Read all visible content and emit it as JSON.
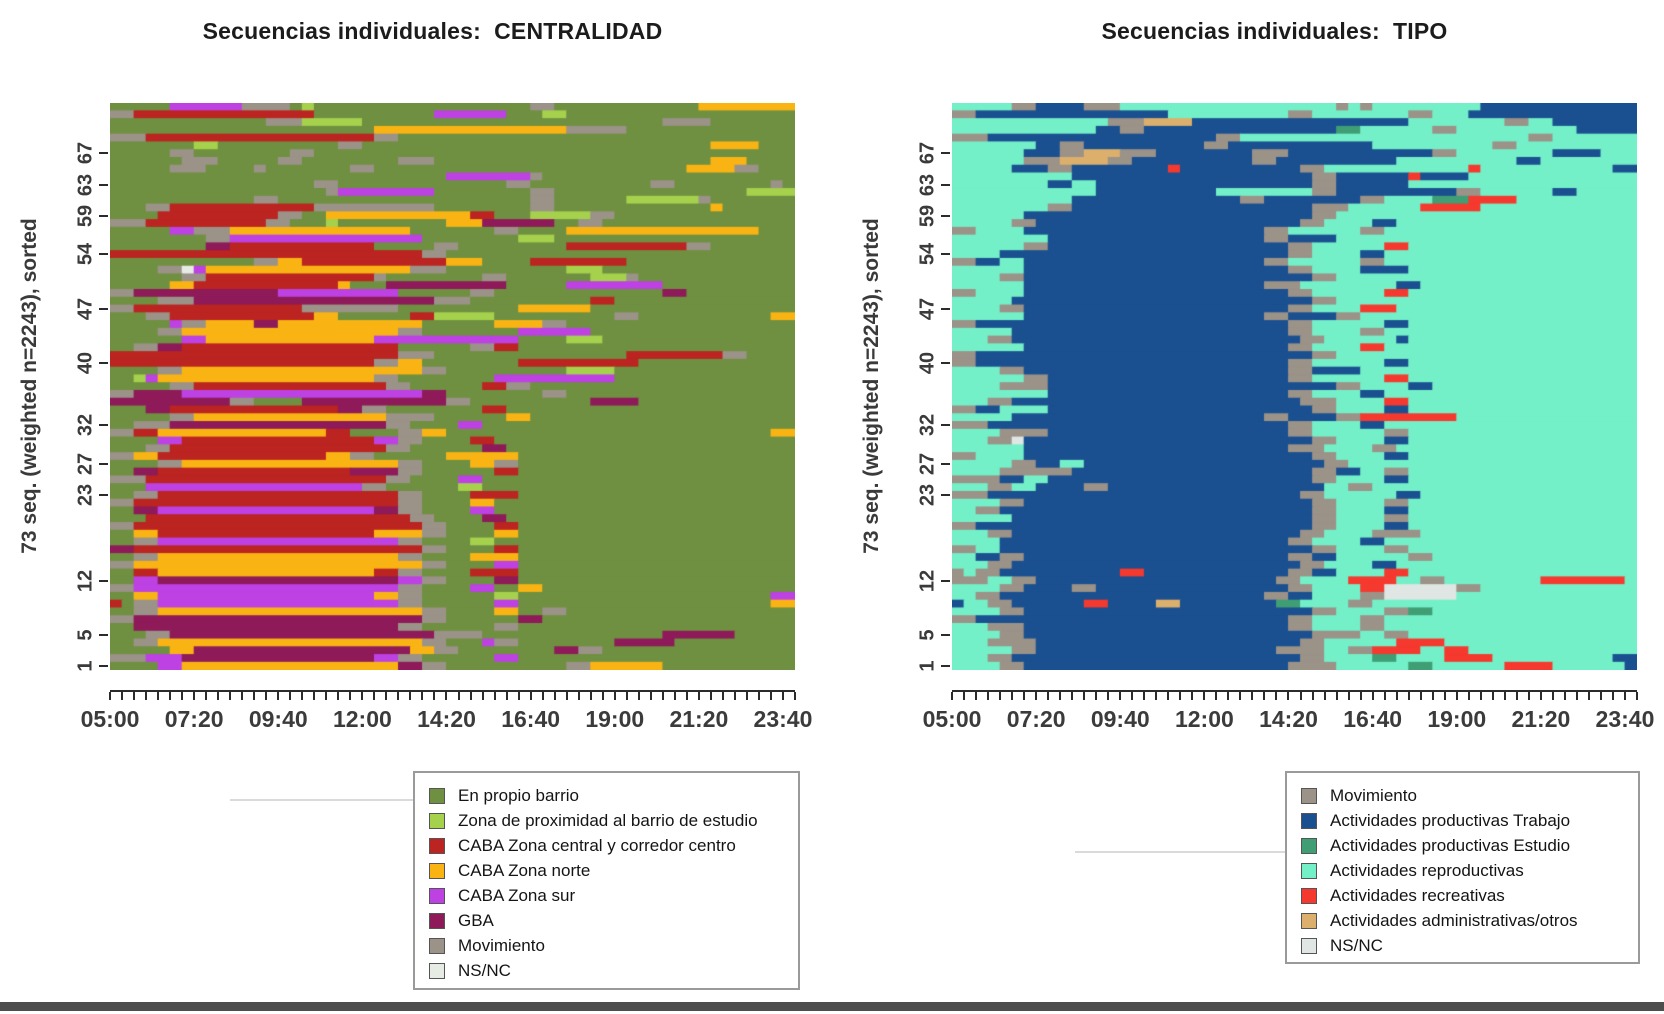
{
  "figure": {
    "background": "#ffffff",
    "bottom_bar_color": "#4d4d4d"
  },
  "chart_data": [
    {
      "type": "heatmap",
      "subtype": "sequence-index-plot",
      "title": "Secuencias individuales:  CENTRALIDAD",
      "ylabel": "73 seq. (weighted n=2243), sorted",
      "xlabel": "",
      "n_sequences": 73,
      "n_slots": 57,
      "slot_minutes": 20,
      "time_start": "05:00",
      "time_end": "24:00",
      "x_ticks": [
        "05:00",
        "07:20",
        "09:40",
        "12:00",
        "14:20",
        "16:40",
        "19:00",
        "21:20",
        "23:40"
      ],
      "y_ticks": [
        1,
        5,
        12,
        23,
        27,
        32,
        40,
        47,
        54,
        59,
        63,
        67
      ],
      "grid": false,
      "legend_position": "bottom",
      "states": {
        "G": {
          "label": "En propio barrio",
          "color": "#6f9040"
        },
        "P": {
          "label": "Zona de proximidad al barrio de estudio",
          "color": "#a5d14d"
        },
        "C": {
          "label": "CABA Zona central y corredor centro",
          "color": "#bb2420"
        },
        "N": {
          "label": "CABA Zona norte",
          "color": "#f9b414"
        },
        "S": {
          "label": "CABA Zona sur",
          "color": "#bd41e3"
        },
        "B": {
          "label": "GBA",
          "color": "#8e1a59"
        },
        "M": {
          "label": "Movimiento",
          "color": "#9b9288"
        },
        "X": {
          "label": "NS/NC",
          "color": "#e6ebe4"
        }
      },
      "legend": [
        {
          "label": "En propio barrio",
          "color": "#6f9040"
        },
        {
          "label": "Zona de proximidad al barrio de estudio",
          "color": "#a5d14d"
        },
        {
          "label": "CABA Zona central y corredor centro",
          "color": "#bb2420"
        },
        {
          "label": "CABA Zona norte",
          "color": "#f9b414"
        },
        {
          "label": "CABA Zona sur",
          "color": "#bd41e3"
        },
        {
          "label": "GBA",
          "color": "#8e1a59"
        },
        {
          "label": "Movimiento",
          "color": "#9b9288"
        },
        {
          "label": "NS/NC",
          "color": "#e6ebe4"
        }
      ],
      "row_order": "top_to_bottom",
      "rows": [
        "G5,S6,M4,G1,P1,G18,M2,G12,N8",
        "M2,C15,G10,S6,G3,P2,G19",
        "G13,M3,P5,G25,M4,G7",
        "G22,N16,M5,G14",
        "M3,C19,M2,G33",
        "G7,P2,G10,M2,G29,N4,G3",
        "G5,M2,G8,M2,G40",
        "G6,M3,G5,M2,G8,M3,G23,N3,G4",
        "G5,M3,G4,M1,G7,M2,G26,N4,M2,G3",
        "G28,S7,M1,G21",
        "G17,M2,G14,M2,G10,M2,G8,M1,G1",
        "G18,M1,S8,G8,M2,G16,P4",
        "G12,M2,G21,M2,G6,P6,M1,G7",
        "G3,M2,C12,M10,G8,M2,G13,N1,G6",
        "G4,C10,M2,G2,N12,C2,G3,P5,M2,G15",
        "M3,C10,M2,G3,P1,G9,N3,B6,G2,M2,G16",
        "G5,S2,M3,N15,G7,M2,G4,N16,G3",
        "G8,M2,S16,G8,P3,G20",
        "G8,B2,C12,G5,M2,G9,C10,M2,G7",
        "C26,M2,G29",
        "G12,M2,N2,C12,N3,G4,C8,G14",
        "G4,M2,X1,S1,N17,M3,G10,P3,G16",
        "G6,M2,C14,M1,G8,M2,G7,P3,M1,G13",
        "G5,N2,C12,N1,G3,B10,G5,S8,G11",
        "M2,B12,S10,G6,M2,G14,B2,G9",
        "G4,M3,B20,M3,G10,C2,G15",
        "M2,C14,M8,G10,N6,G17",
        "G3,M2,C12,N2,G6,C2,P5,G10,M2,G11,N2",
        "G5,S1,M2,N4,B2,N12,G6,N4,M2,G19",
        "G4,M2,N18,M2,G8,S6,G17",
        "G6,S2,N14,S12,G4,P3,G16",
        "G2,M2,B2,C18,G6,M2,C2,G23",
        "C24,M3,G16,C8,M2,G4",
        "C22,M2,N2,G8,C10,G13",
        "G4,M2,N20,M2,G10,P4,G15",
        "G2,P1,S1,N18,M2,G8,S10,G15",
        "G5,M2,C16,M2,G6,C2,M2,G22",
        "M2,B4,S20,B2,G8,M2,G19",
        "B10,M2,G4,B12,M2,G10,B4,G13",
        "G3,B2,C14,B2,M2,G8,C2,G24",
        "G5,M2,N16,M4,G6,N2,G22",
        "G2,M3,B18,M2,G4,S2,G26",
        "M2,C2,N14,C2,G4,M2,N2,G27,N2",
        "G4,S2,C16,S2,M2,G4,C2,G25",
        "G3,M2,C18,M2,G6,B2,G24",
        "M2,N2,C14,N2,M2,G6,N6,G23",
        "G4,M2,N18,M2,G4,N2,M2,G23",
        "G2,B2,C16,B4,M2,G6,C2,G23",
        "M3,C20,M2,G4,S2,G26",
        "G3,S18,M2,G6,P2,G26",
        "G2,M2,C20,M2,G4,C4,G23",
        "M2,C22,M2,G4,N2,G25",
        "G2,B2,S18,B2,M2,G4,S2,G25",
        "G3,C22,M2,G4,B2,G24",
        "M2,C24,M2,G4,C2,G23",
        "G2,N2,C18,N4,M2,G4,N2,G23",
        "G2,M2,S20,M2,G4,P2,G25",
        "B2,C24,M2,G4,C2,G23",
        "G2,M2,N20,M2,G4,N4,G23",
        "M2,N24,M2,G4,S2,G23",
        "G2,C2,N18,C2,M2,G4,C4,G23",
        "G2,S2,B20,S2,M2,G4,B2,G23",
        "M2,S22,M2,G4,S2,G2,N2,G21",
        "G2,N2,S18,N2,M2,G6,P2,G21,S2",
        "C1,G1,M2,S20,M2,G6,S2,G21,N2",
        "G2,M2,N22,M2,G4,N2,G2,M2,G19",
        "M2,B24,M2,G6,B2,G21",
        "G2,B22,M2,G6,M2,G23",
        "G3,M2,B22,M4,G15,B6,G5",
        "G2,M2,N22,M2,G3,S1,M2,G8,B5,G10",
        "G5,N2,B18,N2,M2,G8,B2,M2,G16",
        "M3,S3,B16,S2,M2,G6,S2,G23",
        "G4,S2,N18,B2,M2,G10,M2,N6,G11"
      ]
    },
    {
      "type": "heatmap",
      "subtype": "sequence-index-plot",
      "title": "Secuencias individuales:  TIPO",
      "ylabel": "73 seq. (weighted n=2243), sorted",
      "xlabel": "",
      "n_sequences": 73,
      "n_slots": 57,
      "slot_minutes": 20,
      "time_start": "05:00",
      "time_end": "24:00",
      "x_ticks": [
        "05:00",
        "07:20",
        "09:40",
        "12:00",
        "14:20",
        "16:40",
        "19:00",
        "21:20",
        "23:40"
      ],
      "y_ticks": [
        1,
        5,
        12,
        23,
        27,
        32,
        40,
        47,
        54,
        59,
        63,
        67
      ],
      "grid": false,
      "legend_position": "bottom",
      "states": {
        "M": {
          "label": "Movimiento",
          "color": "#9b9288"
        },
        "T": {
          "label": "Actividades productivas Trabajo",
          "color": "#1a5090"
        },
        "E": {
          "label": "Actividades productivas Estudio",
          "color": "#3f9e74"
        },
        "R": {
          "label": "Actividades reproductivas",
          "color": "#74f0c8"
        },
        "C": {
          "label": "Actividades recreativas",
          "color": "#f5392e"
        },
        "A": {
          "label": "Actividades administrativas/otros",
          "color": "#dcb06c"
        },
        "X": {
          "label": "NS/NC",
          "color": "#dfe6e3"
        }
      },
      "legend": [
        {
          "label": "Movimiento",
          "color": "#9b9288"
        },
        {
          "label": "Actividades productivas Trabajo",
          "color": "#1a5090"
        },
        {
          "label": "Actividades productivas Estudio",
          "color": "#3f9e74"
        },
        {
          "label": "Actividades reproductivas",
          "color": "#74f0c8"
        },
        {
          "label": "Actividades recreativas",
          "color": "#f5392e"
        },
        {
          "label": "Actividades administrativas/otros",
          "color": "#dcb06c"
        },
        {
          "label": "NS/NC",
          "color": "#dfe6e3"
        }
      ],
      "row_order": "top_to_bottom",
      "rows": [
        "R5,M2,T4,M3,R18,M1,R1,M1,R9,T13",
        "M2,T16,R10,M2,R8,M2,R3,T14",
        "R13,M3,A4,T18,R8,M2,R2,T7",
        "R12,T2,M2,T16,E2,R6,M2,R10,T5",
        "M3,T19,M2,R24,M2,R7",
        "R7,T2,M2,T10,M2,T12,R10,M2,R10",
        "R6,T3,M2,A3,M3,T8,M3,T12,M2,R8,T4,R3",
        "R6,M3,A4,M2,T10,M2,T10,R10,T2,R8",
        "R5,T3,M2,T8,C1,T10,M2,R12,C1,R11,T2",
        "R10,T20,M2,T6,C1,T4,R14",
        "R8,T2,R2,T18,M2,T6,R19",
        "R12,T10,R8,M2,T10,M2,R6,T2,R5",
        "R10,T14,M2,T8,M2,R4,E3,C4,R10",
        "R8,M2,T20,M3,R6,C5,R13",
        "R6,T24,M2,R25",
        "R5,M2,T22,M2,R4,T2,R20",
        "M2,R4,T20,M2,R6,M2,R21",
        "R8,T18,M2,T4,R25",
        "R6,M2,T20,M2,R6,C2,R19",
        "R4,T24,M2,R4,T2,R21",
        "M2,T2,R2,T20,M2,R6,M2,R21",
        "R6,T22,M2,R4,T4,R19",
        "R4,M2,T24,M2,R25",
        "R6,T20,M3,R8,T2,R18",
        "M2,R4,T22,M2,R6,C2,R19",
        "R5,T25,M2,R25",
        "R4,M2,T22,M2,R4,C3,R20",
        "R6,T20,M2,T4,M2,R23",
        "M2,T26,M2,R6,T2,R19",
        "R5,T23,M2,R4,M2,R21",
        "R3,M2,T24,M2,R6,T1,R19",
        "R6,T22,M2,R4,C2,R21",
        "M2,T28,M2,R25",
        "M2,T26,M2,R6,T2,R19",
        "R4,M2,T22,M2,T4,R23",
        "R6,M2,T20,M2,R6,C2,R19",
        "R4,M4,T24,M2,R4,T2,R17",
        "R8,T20,M2,R4,T2,R21",
        "R3,M2,T24,M3,R4,C2,R19",
        "M2,T2,R4,T22,M2,R4,T2,R19",
        "R5,T21,M2,T4,M2,C8,R15",
        "M3,T25,M2,R4,T2,R21",
        "R4,M4,T20,M2,R6,M2,R19",
        "R3,M2,X1,T24,M2,R4,T2,R19",
        "R6,T22,M3,R4,M2,R20",
        "M2,R4,T24,M2,R4,T2,R19",
        "R5,M2,T2,R2,T20,M2,R24",
        "R4,M6,T20,M2,T2,R2,M2,R19",
        "M4,T2,R2,T22,M2,R4,T2,R19",
        "R3,M2,R2,T4,M2,T18,R2,M2,R22",
        "M3,T26,M2,R6,T2,R18",
        "R4,M2,T24,M2,R4,M2,R19",
        "R2,M2,T26,M2,R4,T2,R19",
        "R5,T25,M2,R4,M2,R19",
        "M2,T28,M2,R4,T2,R19",
        "R3,M2,T24,M2,R4,M4,R18",
        "R4,T24,M2,R4,T2,R21",
        "M2,R2,T26,M2,R4,M2,R19",
        "R2,T2,M2,T22,M2,T2,R6,M2,R17",
        "R3,M2,T24,M2,R4,T2,R20",
        "M1,R1,M2,T10,C2,T12,M2,T2,R4,C2,R19",
        "M3,R2,M2,T20,M2,R4,C4,R2,M2,R8,C7,R1",
        "R4,M2,T4,M2,T16,M2,R4,C2,X6,M2,R13",
        "R2,M2,T22,M2,T2,R4,M2,X6,R15",
        "T1,R2,M2,T6,C2,T4,A2,T8,E2,R4,M2,R22",
        "R4,M2,T24,M2,R4,M2,E2,R17",
        "M2,T26,M2,R4,M2,R21",
        "R3,M3,T22,M2,R4,M2,R21",
        "R4,M2,T24,M4,R2,M2,R19",
        "R3,M4,T22,M2,R6,C4,R16",
        "R5,M2,T20,M4,R2,M2,C4,R2,C2,R14",
        "R3,M2,T24,M2,R4,E2,R4,C4,R10,T2",
        "R4,M2,T22,M4,R6,E2,R6,C4,R6,T1"
      ]
    }
  ]
}
